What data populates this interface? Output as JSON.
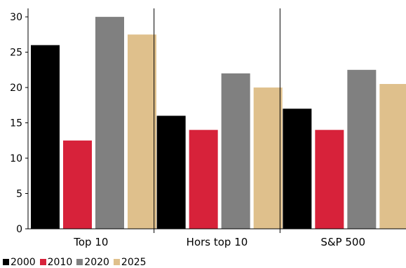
{
  "chart_data": {
    "type": "bar",
    "categories": [
      "Top 10",
      "Hors top 10",
      "S&P 500"
    ],
    "series": [
      {
        "name": "2000",
        "values": [
          26,
          16,
          17
        ],
        "color": "#000000"
      },
      {
        "name": "2010",
        "values": [
          12.5,
          14,
          14
        ],
        "color": "#d7223a"
      },
      {
        "name": "2020",
        "values": [
          30,
          22,
          22.5
        ],
        "color": "#808080"
      },
      {
        "name": "2025",
        "values": [
          27.5,
          20,
          20.5
        ],
        "color": "#dfc08c"
      }
    ],
    "yticks": [
      "0",
      "5",
      "10",
      "15",
      "20",
      "25",
      "30"
    ],
    "ylim": [
      0,
      31
    ],
    "title": "",
    "xlabel": "",
    "ylabel": "",
    "grid": false,
    "legend": "bottom-left"
  }
}
